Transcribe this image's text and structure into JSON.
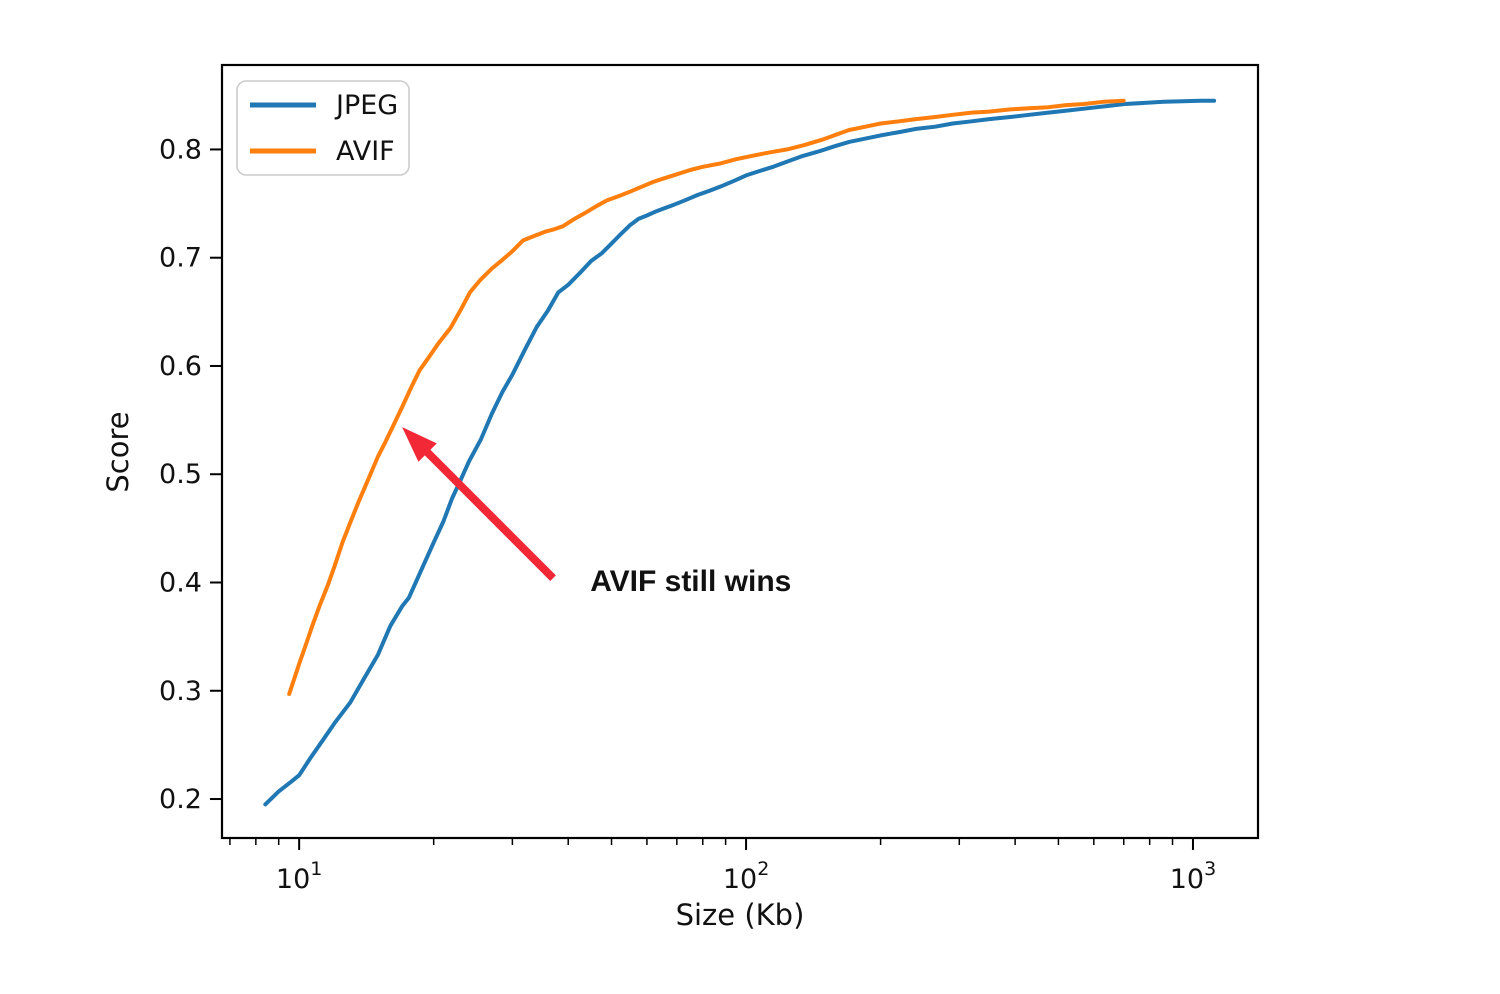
{
  "figure": {
    "background": "#ffffff",
    "axes_edge_color": "#000000",
    "text_color": "#111111"
  },
  "chart_data": {
    "type": "line",
    "title": "",
    "xlabel": "Size (Kb)",
    "ylabel": "Score",
    "x_scale": "log10",
    "y_scale": "linear",
    "xlim": [
      6.72,
      1398
    ],
    "ylim": [
      0.164,
      0.878
    ],
    "x_ticks_major": [
      10,
      100,
      1000
    ],
    "x_ticks_minor": [
      7,
      8,
      9,
      20,
      30,
      40,
      50,
      60,
      70,
      80,
      90,
      200,
      300,
      400,
      500,
      600,
      700,
      800,
      900
    ],
    "y_ticks": [
      0.2,
      0.3,
      0.4,
      0.5,
      0.6,
      0.7,
      0.8
    ],
    "grid": false,
    "legend": {
      "position": "upper-left",
      "entries": [
        {
          "label": "JPEG",
          "color": "#1f77b4"
        },
        {
          "label": "AVIF",
          "color": "#ff7f0e"
        }
      ]
    },
    "series": [
      {
        "name": "JPEG",
        "color": "#1f77b4",
        "points": [
          [
            8.4,
            0.195
          ],
          [
            9.0,
            0.207
          ],
          [
            9.6,
            0.216
          ],
          [
            10.0,
            0.222
          ],
          [
            10.6,
            0.238
          ],
          [
            11.2,
            0.252
          ],
          [
            12.0,
            0.27
          ],
          [
            13.0,
            0.289
          ],
          [
            14.0,
            0.312
          ],
          [
            15.0,
            0.333
          ],
          [
            16.0,
            0.36
          ],
          [
            17.0,
            0.378
          ],
          [
            17.6,
            0.386
          ],
          [
            18.6,
            0.408
          ],
          [
            20.0,
            0.437
          ],
          [
            21.0,
            0.456
          ],
          [
            22.0,
            0.478
          ],
          [
            23.0,
            0.495
          ],
          [
            24.0,
            0.512
          ],
          [
            25.5,
            0.532
          ],
          [
            27.0,
            0.556
          ],
          [
            28.5,
            0.576
          ],
          [
            30.0,
            0.592
          ],
          [
            32.0,
            0.615
          ],
          [
            34.0,
            0.636
          ],
          [
            36.0,
            0.651
          ],
          [
            38.0,
            0.668
          ],
          [
            40.0,
            0.675
          ],
          [
            42.5,
            0.686
          ],
          [
            45.0,
            0.697
          ],
          [
            47.5,
            0.704
          ],
          [
            50.0,
            0.713
          ],
          [
            52.5,
            0.722
          ],
          [
            55.0,
            0.73
          ],
          [
            57.5,
            0.736
          ],
          [
            60.0,
            0.739
          ],
          [
            63.0,
            0.743
          ],
          [
            66.0,
            0.746
          ],
          [
            69.0,
            0.749
          ],
          [
            73.0,
            0.753
          ],
          [
            78.0,
            0.758
          ],
          [
            83.0,
            0.762
          ],
          [
            88.0,
            0.766
          ],
          [
            94.0,
            0.771
          ],
          [
            100.0,
            0.776
          ],
          [
            107.0,
            0.78
          ],
          [
            115.0,
            0.784
          ],
          [
            124.0,
            0.789
          ],
          [
            134.0,
            0.794
          ],
          [
            145.0,
            0.798
          ],
          [
            158.0,
            0.803
          ],
          [
            170.0,
            0.807
          ],
          [
            185.0,
            0.81
          ],
          [
            200.0,
            0.813
          ],
          [
            220.0,
            0.816
          ],
          [
            240.0,
            0.819
          ],
          [
            265.0,
            0.821
          ],
          [
            290.0,
            0.824
          ],
          [
            320.0,
            0.826
          ],
          [
            350.0,
            0.828
          ],
          [
            390.0,
            0.83
          ],
          [
            430.0,
            0.832
          ],
          [
            475.0,
            0.834
          ],
          [
            525.0,
            0.836
          ],
          [
            580.0,
            0.838
          ],
          [
            640.0,
            0.84
          ],
          [
            704.0,
            0.842
          ],
          [
            780.0,
            0.843
          ],
          [
            860.0,
            0.844
          ],
          [
            950.0,
            0.8445
          ],
          [
            1040.0,
            0.845
          ],
          [
            1115.0,
            0.845
          ]
        ]
      },
      {
        "name": "AVIF",
        "color": "#ff7f0e",
        "points": [
          [
            9.5,
            0.297
          ],
          [
            10.0,
            0.325
          ],
          [
            10.4,
            0.345
          ],
          [
            10.7,
            0.36
          ],
          [
            11.1,
            0.378
          ],
          [
            11.6,
            0.398
          ],
          [
            12.0,
            0.415
          ],
          [
            12.5,
            0.437
          ],
          [
            13.0,
            0.455
          ],
          [
            13.6,
            0.475
          ],
          [
            14.2,
            0.493
          ],
          [
            15.0,
            0.516
          ],
          [
            15.6,
            0.53
          ],
          [
            16.2,
            0.544
          ],
          [
            17.0,
            0.562
          ],
          [
            17.8,
            0.58
          ],
          [
            18.6,
            0.596
          ],
          [
            19.5,
            0.608
          ],
          [
            20.5,
            0.621
          ],
          [
            21.8,
            0.635
          ],
          [
            23.0,
            0.652
          ],
          [
            24.1,
            0.668
          ],
          [
            25.5,
            0.68
          ],
          [
            27.0,
            0.69
          ],
          [
            28.5,
            0.698
          ],
          [
            30.0,
            0.706
          ],
          [
            31.7,
            0.716
          ],
          [
            33.5,
            0.72
          ],
          [
            35.5,
            0.724
          ],
          [
            37.0,
            0.726
          ],
          [
            38.9,
            0.729
          ],
          [
            41.0,
            0.735
          ],
          [
            43.5,
            0.741
          ],
          [
            46.0,
            0.747
          ],
          [
            48.9,
            0.753
          ],
          [
            52.0,
            0.757
          ],
          [
            55.0,
            0.761
          ],
          [
            58.0,
            0.765
          ],
          [
            62.0,
            0.77
          ],
          [
            65.2,
            0.773
          ],
          [
            70.0,
            0.777
          ],
          [
            75.0,
            0.781
          ],
          [
            80.0,
            0.784
          ],
          [
            87.5,
            0.787
          ],
          [
            95.0,
            0.791
          ],
          [
            103.0,
            0.794
          ],
          [
            112.0,
            0.797
          ],
          [
            123.6,
            0.8
          ],
          [
            135.0,
            0.804
          ],
          [
            148.0,
            0.809
          ],
          [
            160.0,
            0.814
          ],
          [
            170.0,
            0.818
          ],
          [
            185.0,
            0.821
          ],
          [
            200.0,
            0.824
          ],
          [
            220.0,
            0.826
          ],
          [
            240.0,
            0.828
          ],
          [
            265.0,
            0.83
          ],
          [
            290.0,
            0.832
          ],
          [
            320.0,
            0.834
          ],
          [
            350.0,
            0.835
          ],
          [
            390.0,
            0.837
          ],
          [
            430.0,
            0.838
          ],
          [
            475.0,
            0.839
          ],
          [
            520.0,
            0.841
          ],
          [
            570.0,
            0.842
          ],
          [
            630.0,
            0.844
          ],
          [
            700.0,
            0.845
          ]
        ]
      }
    ],
    "annotation": {
      "text": "AVIF still wins",
      "color": "#f22837",
      "text_xy": [
        44.8,
        0.392
      ],
      "arrow_tail_xy": [
        37.0,
        0.404
      ],
      "arrow_tip_xy": [
        17.0,
        0.5435
      ]
    }
  }
}
